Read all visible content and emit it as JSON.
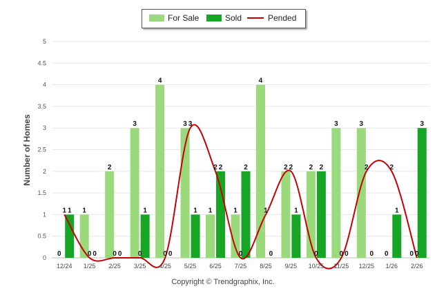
{
  "legend": {
    "for_sale": "For Sale",
    "sold": "Sold",
    "pended": "Pended"
  },
  "footer": "Copyright © Trendgraphix, Inc.",
  "colors": {
    "for_sale": "#9ad97c",
    "sold": "#16a524",
    "pended": "#c80000",
    "grid": "#e6e6e6"
  },
  "chart_data": {
    "type": "bar",
    "ylabel": "Number of Homes",
    "ylim": [
      0,
      5
    ],
    "yticks": [
      "0",
      "0.5",
      "1",
      "1.5",
      "2",
      "2.5",
      "3",
      "3.5",
      "4",
      "4.5",
      "5"
    ],
    "grid": true,
    "legend_position": "top-center",
    "categories": [
      "12/24",
      "1/25",
      "2/25",
      "3/25",
      "4/25",
      "5/25",
      "6/25",
      "7/25",
      "8/25",
      "9/25",
      "10/25",
      "11/25",
      "12/25",
      "1/26",
      "2/26"
    ],
    "series": [
      {
        "name": "For Sale",
        "kind": "bar",
        "values": [
          0,
          1,
          2,
          3,
          4,
          3,
          1,
          1,
          4,
          2,
          2,
          3,
          3,
          0,
          0
        ]
      },
      {
        "name": "Sold",
        "kind": "bar",
        "values": [
          1,
          0,
          0,
          1,
          0,
          1,
          2,
          2,
          0,
          1,
          2,
          0,
          0,
          1,
          3
        ]
      },
      {
        "name": "Pended",
        "kind": "line",
        "values": [
          1,
          0,
          0,
          0,
          0,
          3,
          2,
          0,
          1,
          2,
          0,
          0,
          2,
          2,
          0
        ]
      }
    ]
  }
}
